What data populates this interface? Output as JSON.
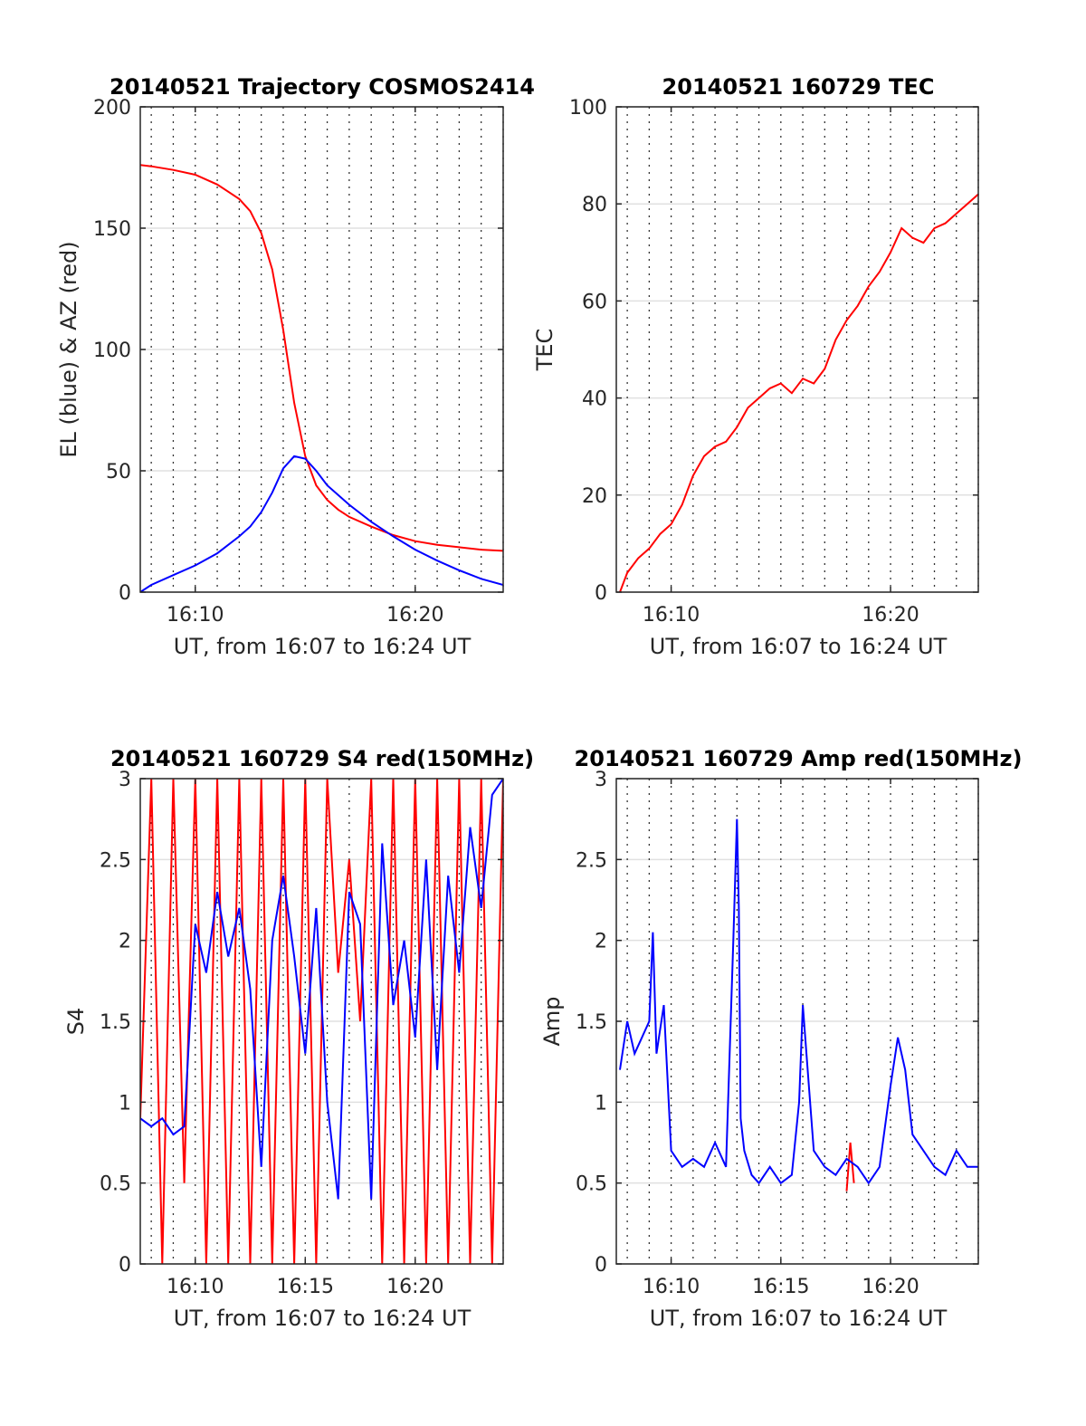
{
  "chart_data": [
    {
      "type": "line",
      "title": "20140521 Trajectory COSMOS2414",
      "xlabel": "UT, from 16:07 to 16:24 UT",
      "ylabel": "EL (blue) & AZ (red)",
      "xlim": [
        "16:07:30",
        "16:24:00"
      ],
      "ylim": [
        0,
        200
      ],
      "x_ticks": [
        "16:10",
        "16:20"
      ],
      "y_ticks": [
        "0",
        "50",
        "100",
        "150",
        "200"
      ],
      "grid": true,
      "minute_gridlines": "dotted",
      "series": [
        {
          "color": "#ff0000",
          "x": [
            "16:07:30",
            "16:08:00",
            "16:09:00",
            "16:10:00",
            "16:11:00",
            "16:12:00",
            "16:12:30",
            "16:13:00",
            "16:13:30",
            "16:14:00",
            "16:14:30",
            "16:15:00",
            "16:15:30",
            "16:16:00",
            "16:16:30",
            "16:17:00",
            "16:18:00",
            "16:19:00",
            "16:20:00",
            "16:21:00",
            "16:22:00",
            "16:23:00",
            "16:24:00"
          ],
          "values": [
            176,
            175.5,
            174,
            172,
            168,
            162,
            157,
            148,
            133,
            108,
            78,
            56,
            44,
            38,
            34,
            31,
            27,
            23.5,
            21,
            19.5,
            18.5,
            17.5,
            17
          ]
        },
        {
          "color": "#0000ff",
          "x": [
            "16:07:30",
            "16:08:00",
            "16:09:00",
            "16:10:00",
            "16:11:00",
            "16:12:00",
            "16:12:30",
            "16:13:00",
            "16:13:30",
            "16:14:00",
            "16:14:30",
            "16:15:00",
            "16:15:30",
            "16:16:00",
            "16:16:30",
            "16:17:00",
            "16:18:00",
            "16:19:00",
            "16:20:00",
            "16:21:00",
            "16:22:00",
            "16:23:00",
            "16:24:00"
          ],
          "values": [
            0,
            3,
            7,
            11,
            16,
            23,
            27,
            33,
            41,
            51,
            56,
            55,
            50,
            44,
            40,
            36,
            29,
            23,
            17.5,
            13,
            9,
            5.5,
            3
          ]
        }
      ]
    },
    {
      "type": "line",
      "title": "20140521 160729 TEC",
      "xlabel": "UT, from 16:07 to 16:24 UT",
      "ylabel": "TEC",
      "xlim": [
        "16:07:30",
        "16:24:00"
      ],
      "ylim": [
        0,
        100
      ],
      "x_ticks": [
        "16:10",
        "16:20"
      ],
      "y_ticks": [
        "0",
        "20",
        "40",
        "60",
        "80",
        "100"
      ],
      "grid": true,
      "minute_gridlines": "dotted",
      "series": [
        {
          "color": "#ff0000",
          "x": [
            "16:07:40",
            "16:08:00",
            "16:08:30",
            "16:09:00",
            "16:09:30",
            "16:10:00",
            "16:10:30",
            "16:11:00",
            "16:11:30",
            "16:12:00",
            "16:12:30",
            "16:13:00",
            "16:13:30",
            "16:14:00",
            "16:14:30",
            "16:15:00",
            "16:15:30",
            "16:16:00",
            "16:16:30",
            "16:17:00",
            "16:17:30",
            "16:18:00",
            "16:18:30",
            "16:19:00",
            "16:19:30",
            "16:20:00",
            "16:20:30",
            "16:21:00",
            "16:21:30",
            "16:22:00",
            "16:22:30",
            "16:23:00",
            "16:23:30",
            "16:24:00"
          ],
          "values": [
            0,
            4,
            7,
            9,
            12,
            14,
            18,
            24,
            28,
            30,
            31,
            34,
            38,
            40,
            42,
            43,
            41,
            44,
            43,
            46,
            52,
            56,
            59,
            63,
            66,
            70,
            75,
            73,
            72,
            75,
            76,
            78,
            80,
            82
          ]
        }
      ]
    },
    {
      "type": "line",
      "title": "20140521 160729 S4 red(150MHz)",
      "xlabel": "UT, from 16:07 to 16:24 UT",
      "ylabel": "S4",
      "xlim": [
        "16:07:30",
        "16:24:00"
      ],
      "ylim": [
        0,
        3
      ],
      "x_ticks": [
        "16:10",
        "16:15",
        "16:20"
      ],
      "y_ticks": [
        "0",
        "0.5",
        "1",
        "1.5",
        "2",
        "2.5",
        "3"
      ],
      "grid": true,
      "minute_gridlines": "dotted",
      "series": [
        {
          "color": "#ff0000",
          "x": [
            "16:07:30",
            "16:08:00",
            "16:08:30",
            "16:09:00",
            "16:09:30",
            "16:10:00",
            "16:10:30",
            "16:11:00",
            "16:11:30",
            "16:12:00",
            "16:12:30",
            "16:13:00",
            "16:13:30",
            "16:14:00",
            "16:14:30",
            "16:15:00",
            "16:15:30",
            "16:16:00",
            "16:16:30",
            "16:17:00",
            "16:17:30",
            "16:18:00",
            "16:18:30",
            "16:19:00",
            "16:19:30",
            "16:20:00",
            "16:20:30",
            "16:21:00",
            "16:21:30",
            "16:22:00",
            "16:22:30",
            "16:23:00",
            "16:23:30",
            "16:24:00"
          ],
          "values": [
            0.9,
            3,
            0,
            3,
            0.5,
            3,
            0,
            3,
            0,
            3,
            0,
            3,
            0,
            3,
            0,
            3,
            0,
            3,
            1.8,
            2.5,
            1.5,
            3,
            0,
            3,
            0,
            3,
            0,
            3,
            0,
            3,
            0,
            3,
            0,
            3
          ]
        },
        {
          "color": "#0000ff",
          "x": [
            "16:07:30",
            "16:08:00",
            "16:08:30",
            "16:09:00",
            "16:09:30",
            "16:10:00",
            "16:10:30",
            "16:11:00",
            "16:11:30",
            "16:12:00",
            "16:12:30",
            "16:13:00",
            "16:13:30",
            "16:14:00",
            "16:14:30",
            "16:15:00",
            "16:15:30",
            "16:16:00",
            "16:16:30",
            "16:17:00",
            "16:17:30",
            "16:18:00",
            "16:18:30",
            "16:19:00",
            "16:19:30",
            "16:20:00",
            "16:20:30",
            "16:21:00",
            "16:21:30",
            "16:22:00",
            "16:22:30",
            "16:23:00",
            "16:23:30",
            "16:24:00"
          ],
          "values": [
            0.9,
            0.85,
            0.9,
            0.8,
            0.85,
            2.1,
            1.8,
            2.3,
            1.9,
            2.2,
            1.7,
            0.6,
            2.0,
            2.4,
            1.9,
            1.3,
            2.2,
            1.0,
            0.4,
            2.3,
            2.1,
            0.4,
            2.6,
            1.6,
            2.0,
            1.4,
            2.5,
            1.2,
            2.4,
            1.8,
            2.7,
            2.2,
            2.9,
            3.0
          ]
        }
      ]
    },
    {
      "type": "line",
      "title": "20140521 160729 Amp red(150MHz)",
      "xlabel": "UT, from 16:07 to 16:24 UT",
      "ylabel": "Amp",
      "xlim": [
        "16:07:30",
        "16:24:00"
      ],
      "ylim": [
        0,
        3
      ],
      "x_ticks": [
        "16:10",
        "16:15",
        "16:20"
      ],
      "y_ticks": [
        "0",
        "0.5",
        "1",
        "1.5",
        "2",
        "2.5",
        "3"
      ],
      "grid": true,
      "minute_gridlines": "dotted",
      "series": [
        {
          "color": "#ff0000",
          "x": [
            "16:18:00",
            "16:18:10",
            "16:18:20"
          ],
          "values": [
            0.45,
            0.75,
            0.5
          ]
        },
        {
          "color": "#0000ff",
          "x": [
            "16:07:40",
            "16:08:00",
            "16:08:20",
            "16:08:40",
            "16:09:00",
            "16:09:10",
            "16:09:20",
            "16:09:40",
            "16:10:00",
            "16:10:30",
            "16:11:00",
            "16:11:30",
            "16:12:00",
            "16:12:30",
            "16:12:50",
            "16:13:00",
            "16:13:05",
            "16:13:10",
            "16:13:20",
            "16:13:40",
            "16:14:00",
            "16:14:30",
            "16:15:00",
            "16:15:30",
            "16:15:50",
            "16:16:00",
            "16:16:10",
            "16:16:30",
            "16:17:00",
            "16:17:30",
            "16:18:00",
            "16:18:30",
            "16:19:00",
            "16:19:30",
            "16:20:00",
            "16:20:20",
            "16:20:40",
            "16:21:00",
            "16:21:30",
            "16:22:00",
            "16:22:30",
            "16:23:00",
            "16:23:30",
            "16:24:00"
          ],
          "values": [
            1.2,
            1.5,
            1.3,
            1.4,
            1.5,
            2.05,
            1.3,
            1.6,
            0.7,
            0.6,
            0.65,
            0.6,
            0.75,
            0.6,
            2.0,
            2.75,
            2.2,
            0.9,
            0.7,
            0.55,
            0.5,
            0.6,
            0.5,
            0.55,
            1.0,
            1.6,
            1.3,
            0.7,
            0.6,
            0.55,
            0.65,
            0.6,
            0.5,
            0.6,
            1.1,
            1.4,
            1.2,
            0.8,
            0.7,
            0.6,
            0.55,
            0.7,
            0.6,
            0.6
          ]
        }
      ]
    }
  ]
}
